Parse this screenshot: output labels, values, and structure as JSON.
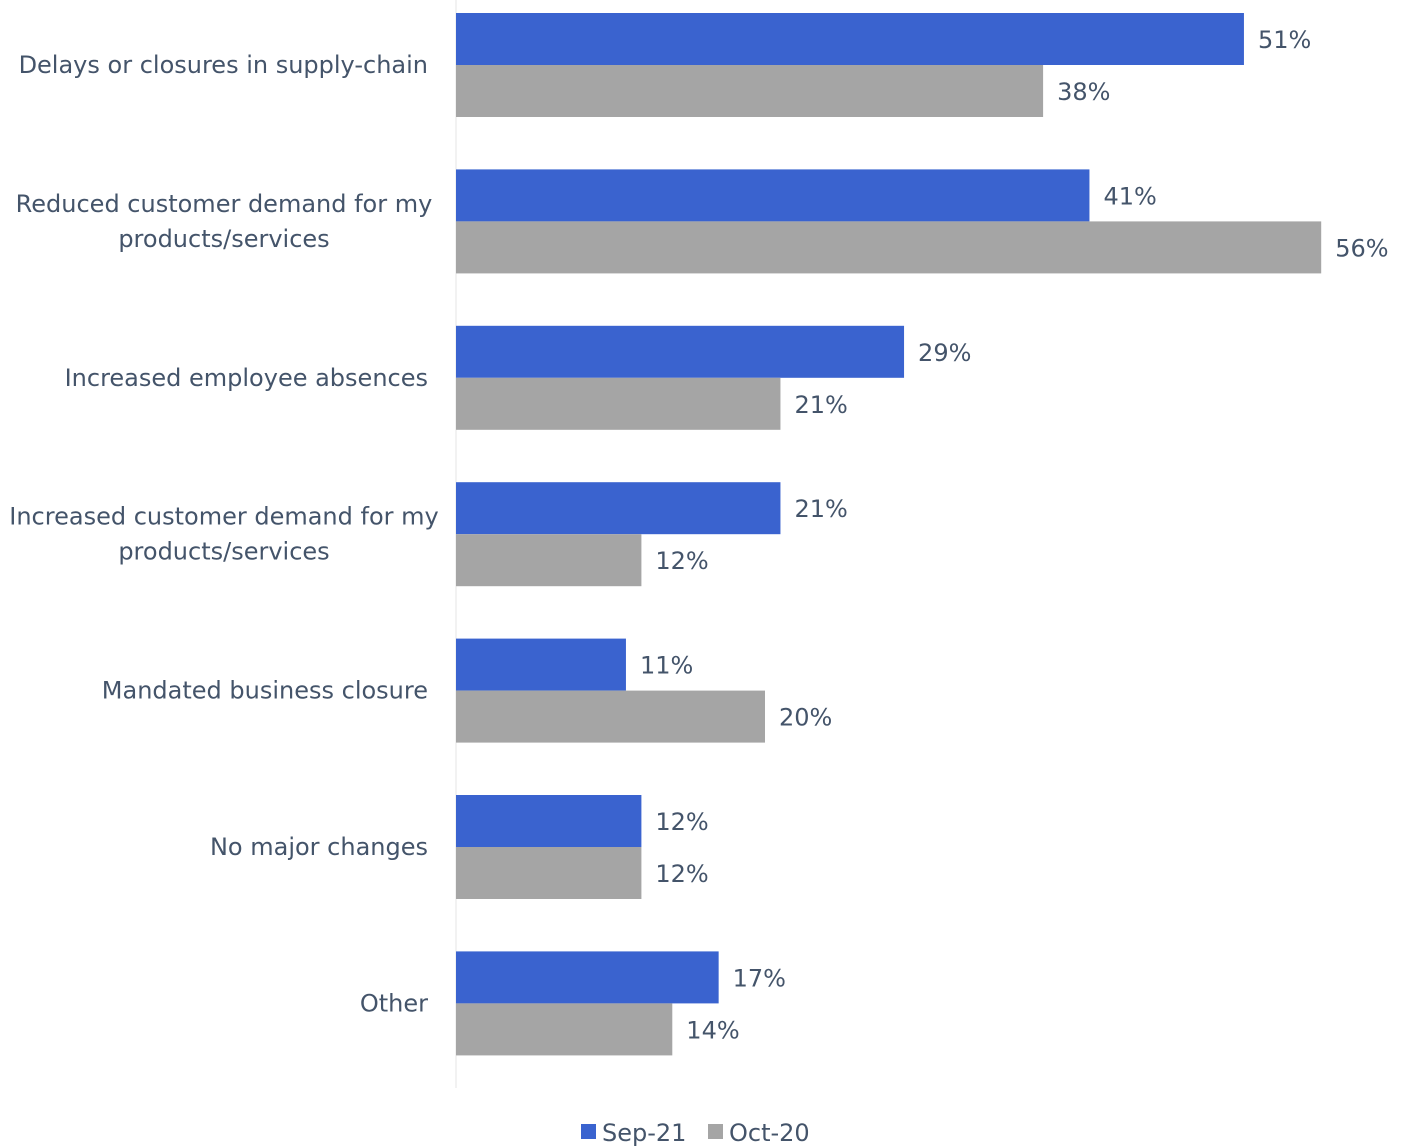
{
  "chart_data": {
    "type": "bar",
    "orientation": "horizontal",
    "categories": [
      [
        "Delays or closures in supply-chain"
      ],
      [
        "Reduced customer demand for my",
        "products/services"
      ],
      [
        "Increased employee absences"
      ],
      [
        "Increased customer demand for my",
        "products/services"
      ],
      [
        "Mandated business closure"
      ],
      [
        "No major changes"
      ],
      [
        "Other"
      ]
    ],
    "series": [
      {
        "name": "Sep-21",
        "color": "#3a63cf",
        "values": [
          51,
          41,
          29,
          21,
          11,
          12,
          17
        ],
        "labels": [
          "51%",
          "41%",
          "29%",
          "21%",
          "11%",
          "12%",
          "17%"
        ]
      },
      {
        "name": "Oct-20",
        "color": "#a5a5a5",
        "values": [
          38,
          56,
          21,
          12,
          20,
          12,
          14
        ],
        "labels": [
          "38%",
          "56%",
          "21%",
          "12%",
          "20%",
          "12%",
          "14%"
        ]
      }
    ],
    "xlim": [
      0,
      60
    ],
    "grid": false,
    "legend": "bottom-center"
  }
}
